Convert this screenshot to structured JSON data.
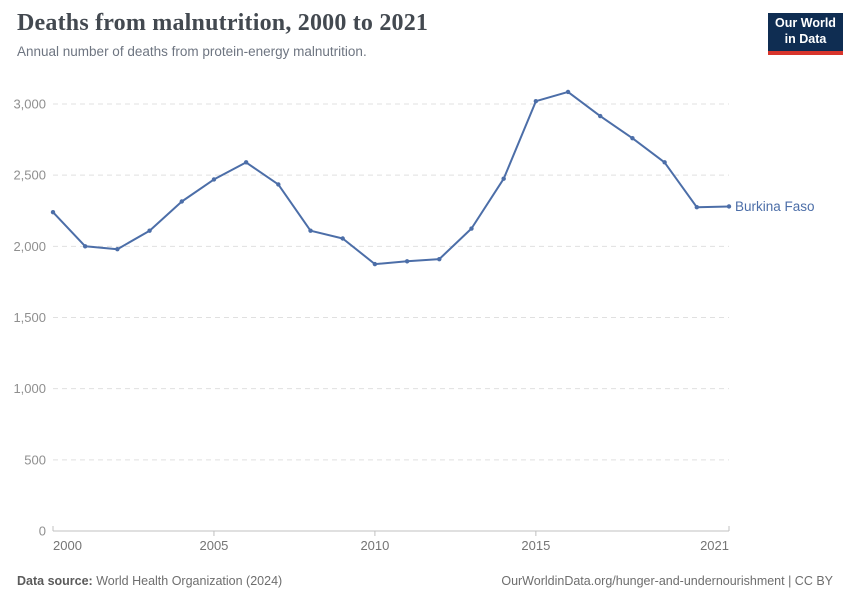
{
  "header": {
    "title": "Deaths from malnutrition, 2000 to 2021",
    "subtitle": "Annual number of deaths from protein-energy malnutrition.",
    "logo": {
      "line1": "Our World",
      "line2": "in Data",
      "bg_color": "#0f2d52",
      "bar_color": "#d8352c"
    }
  },
  "chart_data": {
    "type": "line",
    "title": "Deaths from malnutrition, 2000 to 2021",
    "x": [
      2000,
      2001,
      2002,
      2003,
      2004,
      2005,
      2006,
      2007,
      2008,
      2009,
      2010,
      2011,
      2012,
      2013,
      2014,
      2015,
      2016,
      2017,
      2018,
      2019,
      2020,
      2021
    ],
    "series": [
      {
        "name": "Burkina Faso",
        "color": "#4c6ea8",
        "values": [
          2240,
          2000,
          1980,
          2110,
          2315,
          2470,
          2590,
          2435,
          2110,
          2055,
          1875,
          1895,
          1910,
          2125,
          2475,
          3020,
          3085,
          2915,
          2760,
          2590,
          2275,
          2280
        ]
      }
    ],
    "xlabel": "",
    "ylabel": "",
    "xlim": [
      2000,
      2021
    ],
    "ylim": [
      0,
      3000
    ],
    "grid": "horizontal-dashed",
    "legend_position": "end-of-line-label",
    "y_ticks": [
      {
        "v": 0,
        "label": "0"
      },
      {
        "v": 500,
        "label": "500"
      },
      {
        "v": 1000,
        "label": "1,000"
      },
      {
        "v": 1500,
        "label": "1,500"
      },
      {
        "v": 2000,
        "label": "2,000"
      },
      {
        "v": 2500,
        "label": "2,500"
      },
      {
        "v": 3000,
        "label": "3,000"
      }
    ],
    "x_ticks": [
      {
        "v": 2000,
        "label": "2000",
        "align": "start"
      },
      {
        "v": 2005,
        "label": "2005",
        "align": "middle"
      },
      {
        "v": 2010,
        "label": "2010",
        "align": "middle"
      },
      {
        "v": 2015,
        "label": "2015",
        "align": "middle"
      },
      {
        "v": 2021,
        "label": "2021",
        "align": "end"
      }
    ],
    "colors": {
      "grid": "#e0e0e0",
      "axis": "#c0c0c0",
      "y_tick_label": "#8f8f8f",
      "x_tick_label": "#757575"
    }
  },
  "footer": {
    "source_label": "Data source:",
    "source_text": " World Health Organization (2024)",
    "link_text": "OurWorldinData.org/hunger-and-undernourishment | CC BY"
  }
}
